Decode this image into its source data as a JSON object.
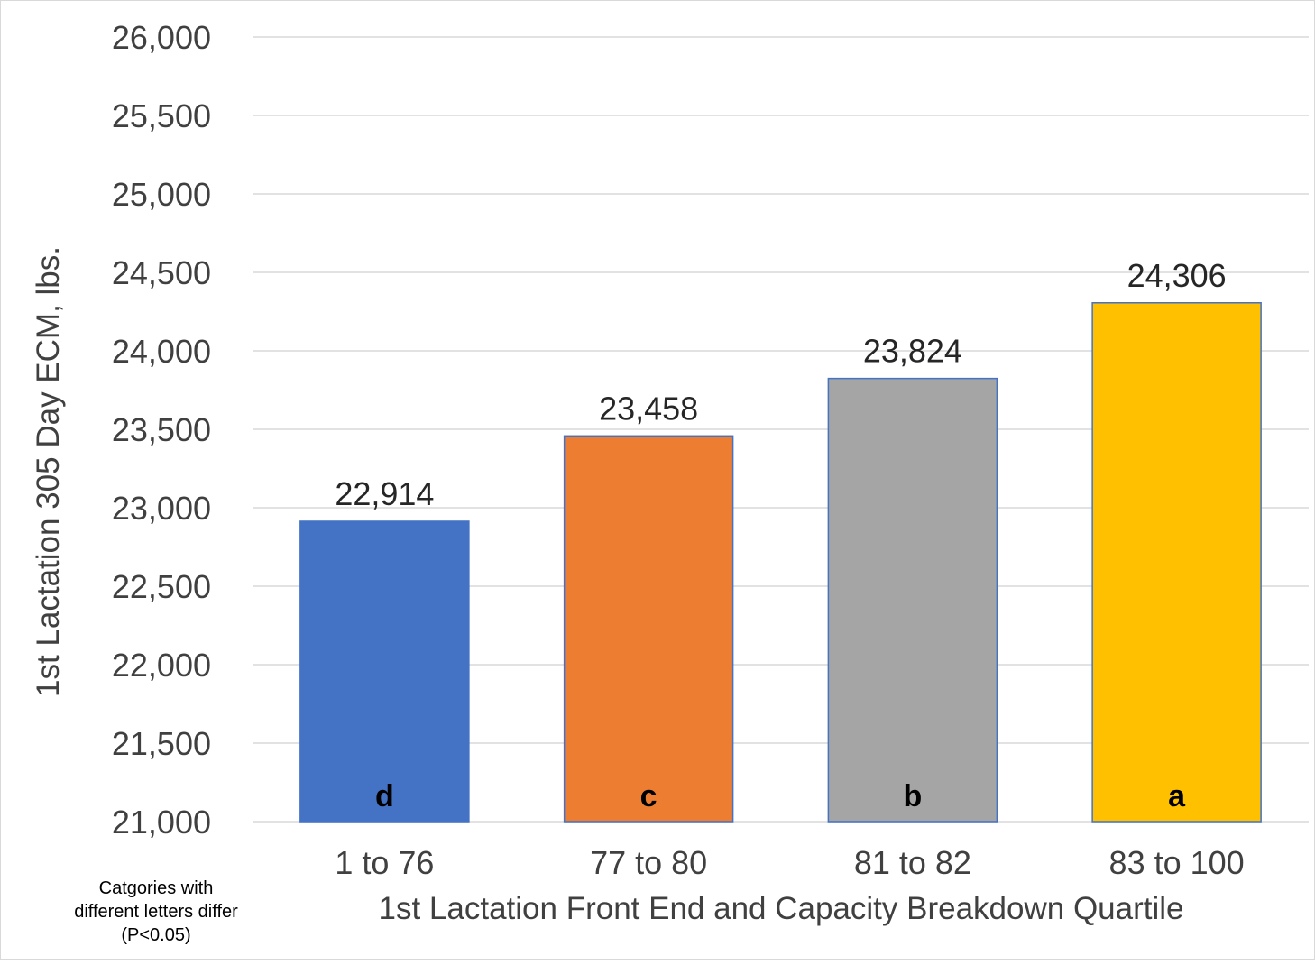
{
  "chart_data": {
    "type": "bar",
    "title": "",
    "xlabel": "1st Lactation Front End and Capacity Breakdown Quartile",
    "ylabel": "1st Lactation 305 Day ECM, lbs.",
    "ylim": [
      21000,
      26000
    ],
    "ytick_step": 500,
    "grid": true,
    "legend": "none",
    "categories": [
      "1 to 76",
      "77 to 80",
      "81 to 82",
      "83 to 100"
    ],
    "values": [
      22914,
      23458,
      23824,
      24306
    ],
    "data_labels": [
      "22,914",
      "23,458",
      "23,824",
      "24,306"
    ],
    "significance_letters": [
      "d",
      "c",
      "b",
      "a"
    ],
    "bar_colors": [
      "#4472c4",
      "#ed7d31",
      "#a5a5a5",
      "#ffc000"
    ],
    "bar_border_color": "#4472c4",
    "gridline_color": "#d9d9d9",
    "footnote": [
      "Catgories with",
      "different letters differ",
      "(P<0.05)"
    ]
  }
}
